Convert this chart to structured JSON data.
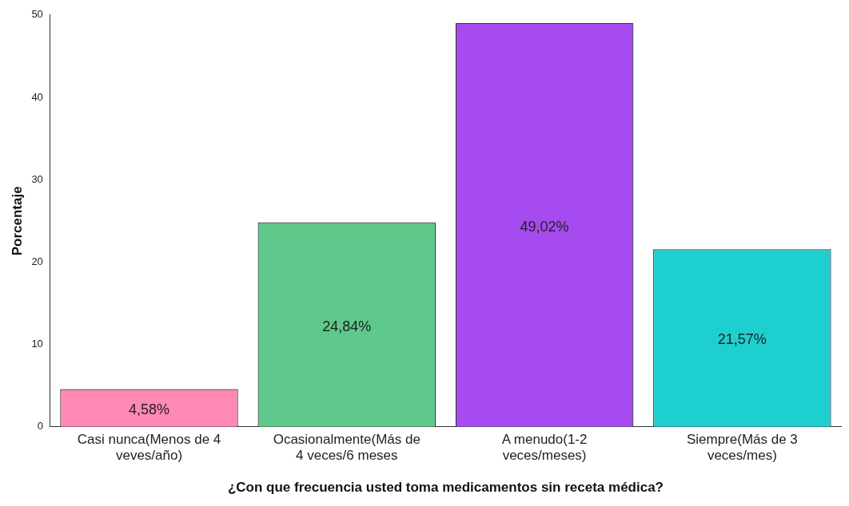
{
  "chart_data": {
    "type": "bar",
    "xlabel": "¿Con que frecuencia usted toma medicamentos sin receta médica?",
    "ylabel": "Porcentaje",
    "categories": [
      "Casi nunca(Menos de 4 veves/año)",
      "Ocasionalmente(Más de 4 veces/6 meses",
      "A menudo(1-2 veces/meses)",
      "Siempre(Más de 3 veces/mes)"
    ],
    "values": [
      4.58,
      24.84,
      49.02,
      21.57
    ],
    "value_labels": [
      "4,58%",
      "24,84%",
      "49,02%",
      "21,57%"
    ],
    "colors": [
      "#ff88b4",
      "#5ec98a",
      "#a64bf0",
      "#1ecfd0"
    ],
    "ylim": [
      0,
      50
    ],
    "yticks": [
      0,
      10,
      20,
      30,
      40,
      50
    ],
    "grid": false,
    "legend": false
  }
}
